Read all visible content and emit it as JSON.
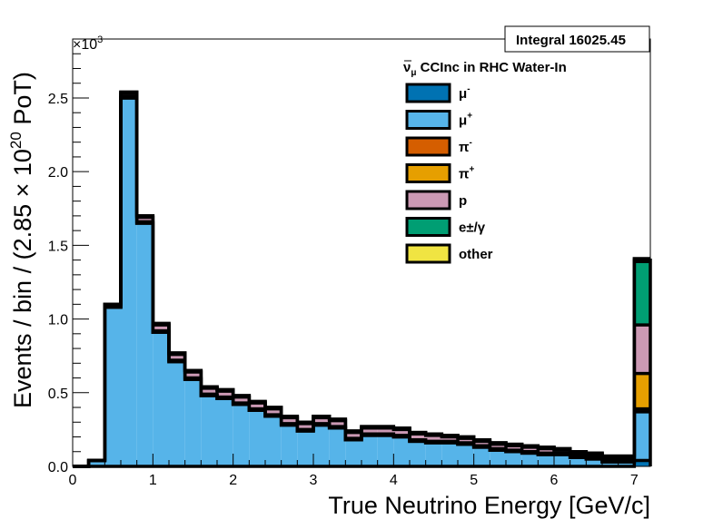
{
  "chart_data": {
    "type": "bar",
    "stacked": true,
    "title": "ν̄μ CCInc in RHC Water-In",
    "title_parts": {
      "nu": "ν",
      "bar": "‾",
      "sub": "μ",
      "rest": " CCInc in RHC Water-In"
    },
    "stats_box": "Integral 16025.45",
    "xlabel": "True Neutrino Energy [GeV/c]",
    "ylabel": "Events / bin / (2.85 × 10",
    "ylabel_sup": "20",
    "ylabel_end": " PoT)",
    "y_multiplier": "×10",
    "y_multiplier_sup": "3",
    "xlim": [
      0,
      7.2
    ],
    "ylim": [
      0,
      2.9
    ],
    "x_ticks": [
      "0",
      "1",
      "2",
      "3",
      "4",
      "5",
      "6",
      "7"
    ],
    "y_ticks": [
      "0.0",
      "0.5",
      "1.0",
      "1.5",
      "2.0",
      "2.5"
    ],
    "grid": false,
    "legend_position": "top-right",
    "bin_edges": [
      0.0,
      0.2,
      0.4,
      0.6,
      0.8,
      1.0,
      1.2,
      1.4,
      1.6,
      1.8,
      2.0,
      2.2,
      2.4,
      2.6,
      2.8,
      3.0,
      3.2,
      3.4,
      3.6,
      3.8,
      4.0,
      4.2,
      4.4,
      4.6,
      4.8,
      5.0,
      5.2,
      5.4,
      5.6,
      5.8,
      6.0,
      6.2,
      6.4,
      6.6,
      6.8,
      7.0,
      7.2
    ],
    "series": [
      {
        "name": "μ",
        "sup": "-",
        "color": "#0072b2",
        "values": [
          0,
          0,
          0,
          0,
          0,
          0,
          0,
          0,
          0,
          0,
          0,
          0,
          0,
          0,
          0,
          0,
          0,
          0,
          0,
          0,
          0,
          0,
          0,
          0,
          0,
          0,
          0,
          0,
          0,
          0,
          0,
          0,
          0,
          0,
          0,
          0.04
        ]
      },
      {
        "name": "μ",
        "sup": "+",
        "color": "#56b4e9",
        "values": [
          0,
          0.04,
          1.08,
          2.5,
          1.65,
          0.91,
          0.71,
          0.59,
          0.48,
          0.46,
          0.42,
          0.38,
          0.34,
          0.28,
          0.24,
          0.28,
          0.26,
          0.18,
          0.21,
          0.21,
          0.2,
          0.17,
          0.16,
          0.16,
          0.15,
          0.13,
          0.11,
          0.1,
          0.09,
          0.08,
          0.08,
          0.06,
          0.05,
          0.03,
          0.03,
          0.33
        ]
      },
      {
        "name": "π",
        "sup": "-",
        "color": "#d55e00",
        "values": [
          0,
          0,
          0,
          0,
          0,
          0,
          0,
          0,
          0,
          0,
          0,
          0,
          0,
          0,
          0,
          0,
          0,
          0,
          0,
          0,
          0,
          0,
          0,
          0,
          0,
          0,
          0,
          0,
          0,
          0,
          0,
          0,
          0,
          0,
          0,
          0.02
        ]
      },
      {
        "name": "π",
        "sup": "+",
        "color": "#e69f00",
        "values": [
          0,
          0,
          0.005,
          0.01,
          0.01,
          0.01,
          0.01,
          0.01,
          0.01,
          0.01,
          0.01,
          0.01,
          0.01,
          0.01,
          0.01,
          0.01,
          0.01,
          0.01,
          0.01,
          0.01,
          0.01,
          0.01,
          0.01,
          0.01,
          0.01,
          0.01,
          0.01,
          0.01,
          0.01,
          0.01,
          0.01,
          0.01,
          0.01,
          0.01,
          0.01,
          0.24
        ]
      },
      {
        "name": "p",
        "sup": "",
        "color": "#cc99b4",
        "values": [
          0,
          0,
          0.01,
          0.02,
          0.03,
          0.04,
          0.04,
          0.04,
          0.04,
          0.04,
          0.04,
          0.04,
          0.04,
          0.04,
          0.04,
          0.04,
          0.04,
          0.04,
          0.04,
          0.04,
          0.04,
          0.04,
          0.04,
          0.03,
          0.03,
          0.03,
          0.03,
          0.03,
          0.03,
          0.03,
          0.02,
          0.02,
          0.02,
          0.02,
          0.02,
          0.33
        ]
      },
      {
        "name": "e±/γ",
        "sup": "",
        "color": "#009e73",
        "values": [
          0,
          0,
          0.005,
          0.01,
          0.01,
          0.01,
          0.01,
          0.01,
          0.01,
          0.01,
          0.01,
          0.01,
          0.01,
          0.01,
          0.01,
          0.01,
          0.01,
          0.01,
          0.01,
          0.01,
          0.01,
          0.01,
          0.01,
          0.01,
          0.01,
          0.01,
          0.01,
          0.01,
          0.01,
          0.01,
          0.01,
          0.01,
          0.01,
          0.01,
          0.01,
          0.43
        ]
      },
      {
        "name": "other",
        "sup": "",
        "color": "#f0e442",
        "values": [
          0,
          0,
          0,
          0,
          0,
          0,
          0,
          0,
          0,
          0,
          0,
          0,
          0,
          0,
          0,
          0,
          0,
          0,
          0,
          0,
          0,
          0,
          0,
          0,
          0,
          0,
          0,
          0,
          0,
          0,
          0,
          0,
          0,
          0,
          0,
          0.02
        ]
      }
    ]
  }
}
